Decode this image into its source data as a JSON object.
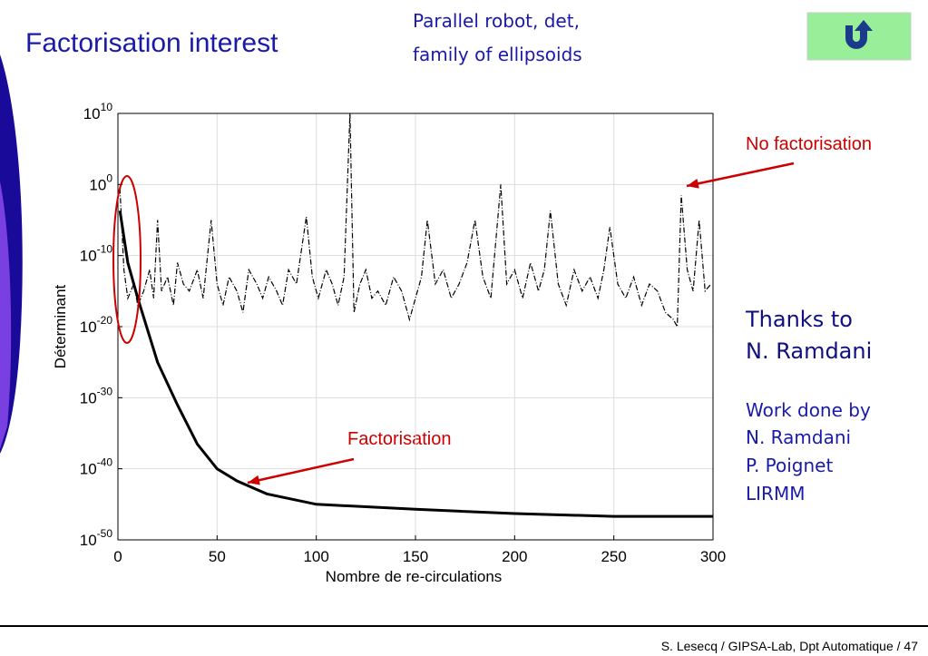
{
  "slide": {
    "title": "Factorisation interest",
    "subtitle": [
      "Parallel robot, det,",
      "family of ellipsoids"
    ],
    "thanks": [
      "Thanks to",
      "N. Ramdani"
    ],
    "credits": [
      "Work done by",
      "N. Ramdani",
      "P. Poignet",
      "LIRMM"
    ],
    "footer": "S. Lesecq / GIPSA-Lab, Dpt Automatique / 47"
  },
  "chart_data": {
    "type": "line",
    "xlabel": "Nombre de re-circulations",
    "ylabel": "Déterminant",
    "log_y": true,
    "grid": true,
    "annotations": [
      "No factorisation",
      "Factorisation"
    ],
    "xlim": [
      0,
      300
    ],
    "xticks": [
      0,
      50,
      100,
      150,
      200,
      250,
      300
    ],
    "ylim": [
      1e-50,
      10000000000.0
    ],
    "yticks": [
      {
        "value": 10000000000.0,
        "label": "10^10"
      },
      {
        "value": 1,
        "label": "10^0"
      },
      {
        "value": 1e-10,
        "label": "10^-10"
      },
      {
        "value": 1e-20,
        "label": "10^-20"
      },
      {
        "value": 1e-30,
        "label": "10^-30"
      },
      {
        "value": 1e-40,
        "label": "10^-40"
      },
      {
        "value": 1e-50,
        "label": "10^-50"
      }
    ],
    "series": [
      {
        "name": "No factorisation",
        "color": "#000000",
        "dash": true,
        "x": [
          1,
          3,
          5,
          8,
          10,
          13,
          16,
          18,
          20,
          22,
          25,
          28,
          30,
          33,
          36,
          40,
          43,
          47,
          50,
          53,
          56,
          60,
          63,
          66,
          70,
          73,
          76,
          80,
          83,
          86,
          90,
          95,
          98,
          101,
          105,
          108,
          111,
          114,
          117,
          119,
          122,
          125,
          128,
          131,
          135,
          139,
          143,
          147,
          150,
          153,
          156,
          160,
          164,
          168,
          172,
          176,
          180,
          184,
          188,
          193,
          196,
          200,
          204,
          208,
          212,
          215,
          218,
          222,
          226,
          230,
          234,
          238,
          242,
          245,
          248,
          252,
          256,
          260,
          264,
          268,
          272,
          276,
          280,
          282,
          284,
          287,
          290,
          293,
          296,
          299
        ],
        "values": [
          0.3,
          1e-12,
          1e-16,
          1e-14,
          1e-17,
          1e-15,
          1e-12,
          1e-16,
          1e-05,
          1e-15,
          1e-13,
          1e-17,
          1e-11,
          1e-14,
          1e-15,
          1e-12,
          1e-16,
          1e-05,
          1e-14,
          1e-17,
          1e-13,
          1e-15,
          1e-18,
          1e-12,
          1e-14,
          1e-16,
          1e-13,
          1e-15,
          1e-17,
          1e-12,
          1e-14,
          3e-05,
          1e-13,
          1e-16,
          1e-12,
          1e-14,
          1e-17,
          1e-13,
          10000000000.0,
          1e-18,
          1e-14,
          1e-12,
          1e-16,
          1e-15,
          1e-17,
          1e-13,
          1e-15,
          1e-19,
          1e-16,
          1e-13,
          1e-05,
          1e-14,
          1e-12,
          1e-16,
          1e-14,
          1e-11,
          1e-05,
          1e-13,
          1e-16,
          1,
          1e-14,
          1e-12,
          1e-16,
          1e-11,
          1e-15,
          1e-12,
          0.0002,
          1e-14,
          1e-17,
          1e-12,
          1e-15,
          1e-13,
          1e-16,
          1e-12,
          1e-06,
          1e-14,
          1e-16,
          1e-13,
          1e-17,
          1e-14,
          1e-15,
          1e-18,
          1e-19,
          1e-20,
          0.03,
          1e-12,
          1e-15,
          1e-05,
          1e-15,
          1e-14
        ]
      },
      {
        "name": "Factorisation",
        "color": "#000000",
        "dash": false,
        "x": [
          1,
          5,
          10,
          20,
          30,
          40,
          50,
          60,
          75,
          100,
          150,
          200,
          250,
          300
        ],
        "values": [
          0.0002,
          1e-11,
          1e-16,
          1e-25,
          1e-31,
          3e-37,
          1e-40,
          2e-42,
          3e-44,
          1e-45,
          2e-46,
          5e-47,
          2e-47,
          2e-47
        ]
      }
    ]
  }
}
